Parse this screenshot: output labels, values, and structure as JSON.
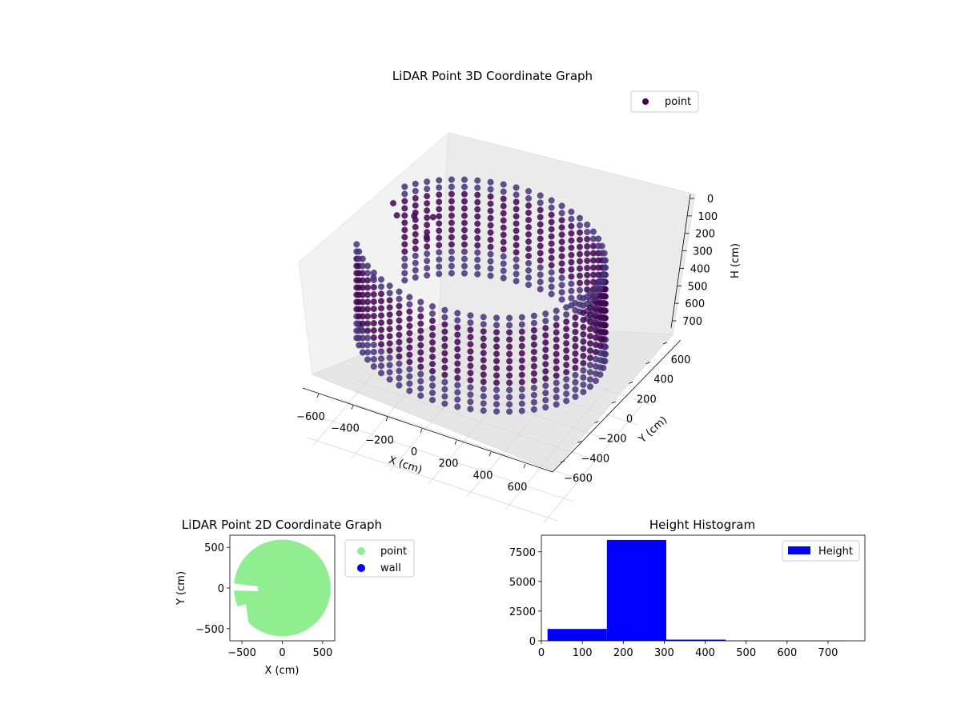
{
  "colors": {
    "point_3d": "#440154",
    "point_2d": "#90ee90",
    "wall": "#0000ff",
    "hist": "#0000ff",
    "pane": "#f2f2f2",
    "grid": "#d0d0d0"
  },
  "chart_data": [
    {
      "type": "scatter",
      "title": "LiDAR Point 3D Coordinate Graph",
      "xlabel": "X (cm)",
      "ylabel": "Y (cm)",
      "zlabel": "H (cm)",
      "xlim": [
        -650,
        650
      ],
      "ylim": [
        -650,
        650
      ],
      "zlim": [
        0,
        750
      ],
      "z_inverted": true,
      "xticks": [
        "−600",
        "−400",
        "−200",
        "0",
        "200",
        "400",
        "600"
      ],
      "yticks": [
        "−600",
        "−400",
        "−200",
        "0",
        "200",
        "400",
        "600"
      ],
      "zticks": [
        "0",
        "100",
        "200",
        "300",
        "400",
        "500",
        "600",
        "700"
      ],
      "legend": {
        "placement": "upper-right",
        "entries": [
          "point"
        ]
      },
      "colormap": "viridis",
      "series": [
        {
          "name": "point",
          "shape": "ring-wall",
          "radius": 600,
          "height_range": [
            30,
            420
          ],
          "open_sector_deg": [
            150,
            210
          ],
          "outlier_points": [
            {
              "x": -600,
              "y": 350,
              "h": 140
            },
            {
              "x": -560,
              "y": 300,
              "h": 160
            },
            {
              "x": -640,
              "y": 200,
              "h": 400
            },
            {
              "x": -480,
              "y": 480,
              "h": 300
            },
            {
              "x": -620,
              "y": -30,
              "h": 500
            },
            {
              "x": -570,
              "y": -120,
              "h": 470
            },
            {
              "x": -520,
              "y": 420,
              "h": 200
            },
            {
              "x": -480,
              "y": 560,
              "h": 250
            }
          ]
        }
      ],
      "grid": true
    },
    {
      "type": "scatter",
      "title": "LiDAR Point 2D Coordinate Graph",
      "xlabel": "X (cm)",
      "ylabel": "Y (cm)",
      "xlim": [
        -650,
        650
      ],
      "ylim": [
        -650,
        650
      ],
      "xticks": [
        "−500",
        "0",
        "500"
      ],
      "yticks": [
        "500",
        "0",
        "−500"
      ],
      "legend": {
        "placement": "outside-right",
        "entries": [
          "point",
          "wall"
        ]
      },
      "series": [
        {
          "name": "point",
          "shape": "filled-disc",
          "radius": 600
        },
        {
          "name": "wall",
          "values": []
        }
      ],
      "grid": false
    },
    {
      "type": "bar",
      "title": "Height Histogram",
      "xlim": [
        0,
        790
      ],
      "ylim": [
        0,
        8900
      ],
      "xticks": [
        "0",
        "100",
        "200",
        "300",
        "400",
        "500",
        "600",
        "700"
      ],
      "yticks": [
        "0",
        "2500",
        "5000",
        "7500"
      ],
      "legend": {
        "placement": "upper-right",
        "entries": [
          "Height"
        ]
      },
      "bins": [
        {
          "x0": 15,
          "x1": 160,
          "count": 1000
        },
        {
          "x0": 160,
          "x1": 305,
          "count": 8500
        },
        {
          "x0": 305,
          "x1": 450,
          "count": 100
        },
        {
          "x0": 450,
          "x1": 595,
          "count": 10
        },
        {
          "x0": 595,
          "x1": 740,
          "count": 5
        }
      ],
      "series": [
        {
          "name": "Height"
        }
      ],
      "grid": false
    }
  ]
}
